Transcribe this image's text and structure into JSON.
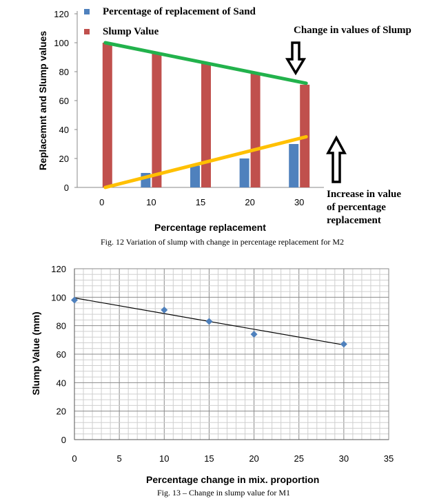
{
  "chart_data": [
    {
      "type": "bar",
      "categories": [
        "0",
        "10",
        "15",
        "20",
        "30"
      ],
      "series": [
        {
          "name": "Percentage of replacement of Sand",
          "color": "#4f81bd",
          "values": [
            0,
            10,
            15,
            20,
            30
          ]
        },
        {
          "name": "Slump Value",
          "color": "#c0504d",
          "values": [
            100,
            93,
            86,
            79,
            71
          ]
        }
      ],
      "ylabel": "Replacemnt and Slump values",
      "xlabel": "Percentage replacement",
      "ylim": [
        0,
        120
      ],
      "yticks": [
        0,
        20,
        40,
        60,
        80,
        100,
        120
      ],
      "grid": false,
      "legend": "top-left",
      "trend_lines": [
        {
          "label": "Change in values of Slump",
          "color": "#22b24c",
          "from": [
            0,
            100
          ],
          "to": [
            30,
            72
          ]
        },
        {
          "label": "Increase in value of percentage replacement",
          "color": "#ffc000",
          "from": [
            0,
            0
          ],
          "to": [
            30,
            35
          ]
        }
      ],
      "annotations": {
        "slump": "Change in values of Slump",
        "increase": [
          "Increase in value",
          "of percentage",
          "replacement"
        ]
      },
      "caption": "Fig. 12 Variation of slump with change in percentage replacement for M2"
    },
    {
      "type": "scatter",
      "x": [
        0,
        10,
        15,
        20,
        30
      ],
      "y": [
        98,
        91,
        83,
        74,
        67
      ],
      "xlabel": "Percentage change  in mix. proportion",
      "ylabel": "Slump Value (mm)",
      "xlim": [
        0,
        35
      ],
      "ylim": [
        0,
        120
      ],
      "xticks": [
        0,
        5,
        10,
        15,
        20,
        25,
        30,
        35
      ],
      "yticks": [
        0,
        20,
        40,
        60,
        80,
        100,
        120
      ],
      "grid": true,
      "marker_color": "#4f81bd",
      "trend_line": {
        "from": [
          0,
          99.5
        ],
        "to": [
          30,
          66.5
        ],
        "color": "#000000"
      },
      "caption": "Fig. 13 – Change in slump value for M1"
    }
  ]
}
